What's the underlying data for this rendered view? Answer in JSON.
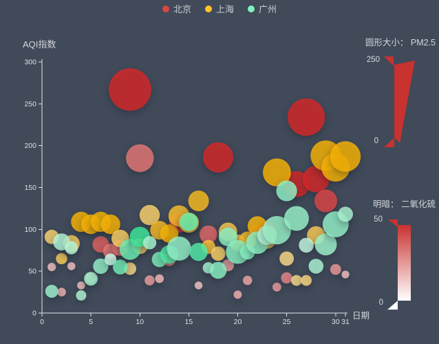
{
  "app": {
    "background_color": "#404a59"
  },
  "legend": {
    "items": [
      {
        "id": "beijing",
        "label": "北京",
        "color": "#dd4444"
      },
      {
        "id": "shanghai",
        "label": "上海",
        "color": "#fec42c"
      },
      {
        "id": "guangzhou",
        "label": "广州",
        "color": "#80f1be"
      }
    ]
  },
  "chart": {
    "y_axis": {
      "name": "AQI指数",
      "min": 0,
      "max": 300,
      "ticks": [
        0,
        50,
        100,
        150,
        200,
        250,
        300
      ]
    },
    "x_axis": {
      "name": "日期",
      "min": 0,
      "max": 31,
      "ticks": [
        0,
        5,
        10,
        15,
        20,
        25,
        30,
        31
      ]
    }
  },
  "visual_maps": {
    "size": {
      "title": "圆形大小：  PM2.5",
      "max_label": "250",
      "min_label": "0",
      "color": "#c8322f"
    },
    "lightness": {
      "title": "明暗：  二氧化硫",
      "max_label": "50",
      "min_label": "0",
      "color_top": "#c8322f",
      "color_bottom": "#ffffff"
    }
  },
  "chart_data": {
    "type": "scatter",
    "title": "",
    "xlabel": "日期",
    "ylabel": "AQI指数",
    "xlim": [
      0,
      31
    ],
    "ylim": [
      0,
      300
    ],
    "grid": false,
    "legend_position": "top-center",
    "size_dimension": "PM2.5",
    "size_range": [
      0,
      250
    ],
    "symbol_size_px": [
      10,
      70
    ],
    "lightness_dimension": "SO2",
    "lightness_range": [
      0,
      50
    ],
    "color_lightness_map": [
      0.9,
      0.5
    ],
    "point_format": [
      "day",
      "AQI",
      "PM2.5",
      "SO2"
    ],
    "series": [
      {
        "id": "beijing",
        "name": "北京",
        "color": "#dd4444",
        "hsl": [
          0,
          69
        ],
        "points": [
          [
            1,
            55,
            9,
            6
          ],
          [
            2,
            25,
            11,
            9
          ],
          [
            3,
            56,
            7,
            5
          ],
          [
            4,
            33,
            7,
            6
          ],
          [
            5,
            42,
            24,
            16
          ],
          [
            6,
            82,
            58,
            33
          ],
          [
            7,
            74,
            49,
            27
          ],
          [
            8,
            78,
            55,
            29
          ],
          [
            9,
            267,
            216,
            64
          ],
          [
            10,
            185,
            127,
            27
          ],
          [
            11,
            39,
            19,
            15
          ],
          [
            12,
            41,
            11,
            7
          ],
          [
            13,
            64,
            38,
            22
          ],
          [
            14,
            108,
            79,
            41
          ],
          [
            15,
            108,
            63,
            26
          ],
          [
            16,
            33,
            6,
            5
          ],
          [
            17,
            94,
            66,
            31
          ],
          [
            18,
            186,
            142,
            79
          ],
          [
            19,
            57,
            31,
            14
          ],
          [
            20,
            22,
            8,
            10
          ],
          [
            21,
            39,
            15,
            13
          ],
          [
            22,
            94,
            69,
            38
          ],
          [
            23,
            99,
            73,
            48
          ],
          [
            24,
            31,
            12,
            16
          ],
          [
            25,
            42,
            27,
            22
          ],
          [
            26,
            154,
            117,
            58
          ],
          [
            27,
            234,
            185,
            69
          ],
          [
            28,
            160,
            120,
            50
          ],
          [
            29,
            134,
            96,
            41
          ],
          [
            30,
            52,
            24,
            17
          ],
          [
            31,
            46,
            5,
            6
          ]
        ]
      },
      {
        "id": "shanghai",
        "name": "上海",
        "color": "#fec42c",
        "hsl": [
          43,
          96
        ],
        "points": [
          [
            1,
            91,
            45,
            23
          ],
          [
            2,
            65,
            27,
            29
          ],
          [
            3,
            83,
            60,
            27
          ],
          [
            4,
            109,
            81,
            51
          ],
          [
            5,
            106,
            77,
            51
          ],
          [
            6,
            109,
            81,
            51
          ],
          [
            7,
            106,
            77,
            51
          ],
          [
            8,
            89,
            65,
            26
          ],
          [
            9,
            53,
            33,
            17
          ],
          [
            10,
            80,
            55,
            24
          ],
          [
            11,
            117,
            81,
            24
          ],
          [
            12,
            99,
            71,
            42
          ],
          [
            13,
            95,
            69,
            50
          ],
          [
            14,
            116,
            87,
            40
          ],
          [
            15,
            108,
            80,
            37
          ],
          [
            16,
            134,
            83,
            43
          ],
          [
            17,
            79,
            43,
            37
          ],
          [
            18,
            71,
            46,
            25
          ],
          [
            19,
            97,
            71,
            31
          ],
          [
            20,
            84,
            57,
            31
          ],
          [
            21,
            87,
            63,
            41
          ],
          [
            22,
            104,
            77,
            48
          ],
          [
            23,
            87,
            62,
            28
          ],
          [
            24,
            168,
            128,
            56
          ],
          [
            25,
            65,
            45,
            17
          ],
          [
            26,
            39,
            24,
            17
          ],
          [
            27,
            39,
            24,
            19
          ],
          [
            28,
            93,
            68,
            29
          ],
          [
            29,
            188,
            143,
            51
          ],
          [
            30,
            174,
            131,
            50
          ],
          [
            31,
            187,
            143,
            53
          ]
        ]
      },
      {
        "id": "guangzhou",
        "name": "广州",
        "color": "#80f1be",
        "hsl": [
          153,
          80
        ],
        "points": [
          [
            1,
            26,
            37,
            13
          ],
          [
            2,
            85,
            62,
            8
          ],
          [
            3,
            78,
            38,
            7
          ],
          [
            4,
            21,
            21,
            9
          ],
          [
            5,
            41,
            42,
            13
          ],
          [
            6,
            56,
            52,
            16
          ],
          [
            7,
            64,
            30,
            2
          ],
          [
            8,
            55,
            48,
            26
          ],
          [
            9,
            76,
            85,
            27
          ],
          [
            10,
            91,
            81,
            40
          ],
          [
            11,
            84,
            39,
            11
          ],
          [
            12,
            64,
            51,
            23
          ],
          [
            13,
            70,
            69,
            36
          ],
          [
            14,
            77,
            105,
            16
          ],
          [
            15,
            109,
            68,
            29
          ],
          [
            16,
            73,
            68,
            34
          ],
          [
            17,
            54,
            27,
            12
          ],
          [
            18,
            51,
            61,
            19
          ],
          [
            19,
            91,
            71,
            18
          ],
          [
            20,
            73,
            102,
            19
          ],
          [
            21,
            73,
            50,
            20
          ],
          [
            22,
            84,
            94,
            18
          ],
          [
            23,
            93,
            77,
            7
          ],
          [
            24,
            99,
            130,
            15
          ],
          [
            25,
            146,
            84,
            17
          ],
          [
            26,
            113,
            108,
            15
          ],
          [
            27,
            81,
            48,
            3
          ],
          [
            28,
            56,
            48,
            9
          ],
          [
            29,
            82,
            92,
            13
          ],
          [
            30,
            106,
            116,
            16
          ],
          [
            31,
            118,
            50,
            11
          ]
        ]
      }
    ]
  }
}
